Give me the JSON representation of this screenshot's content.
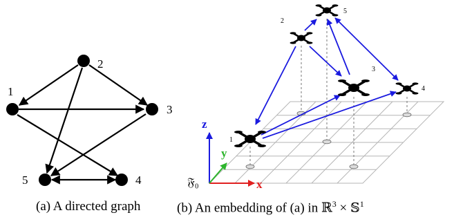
{
  "panel_a": {
    "caption": "(a) A directed graph",
    "nodes": [
      {
        "id": "1",
        "label": "1"
      },
      {
        "id": "2",
        "label": "2"
      },
      {
        "id": "3",
        "label": "3"
      },
      {
        "id": "4",
        "label": "4"
      },
      {
        "id": "5",
        "label": "5"
      }
    ],
    "edges": [
      {
        "from": "2",
        "to": "1"
      },
      {
        "from": "2",
        "to": "3"
      },
      {
        "from": "2",
        "to": "5"
      },
      {
        "from": "1",
        "to": "3"
      },
      {
        "from": "1",
        "to": "4"
      },
      {
        "from": "3",
        "to": "5"
      },
      {
        "from": "5",
        "to": "4"
      },
      {
        "from": "4",
        "to": "5"
      }
    ]
  },
  "panel_b": {
    "caption_prefix": "(b) An embedding of (a) in ",
    "caption_R": "ℝ",
    "caption_R_exp": "3",
    "caption_times": " × ",
    "caption_S": "𝕊",
    "caption_S_exp": "1",
    "frame_label": "𝔉₀",
    "axis_x": "x",
    "axis_y": "y",
    "axis_z": "z",
    "drone_labels": [
      "1",
      "2",
      "3",
      "4",
      "5"
    ],
    "colors": {
      "edges": "#1a1adf",
      "x_axis": "#e02020",
      "y_axis": "#2db52d",
      "z_axis": "#1a1adf",
      "grid": "#b5b5b5"
    }
  }
}
